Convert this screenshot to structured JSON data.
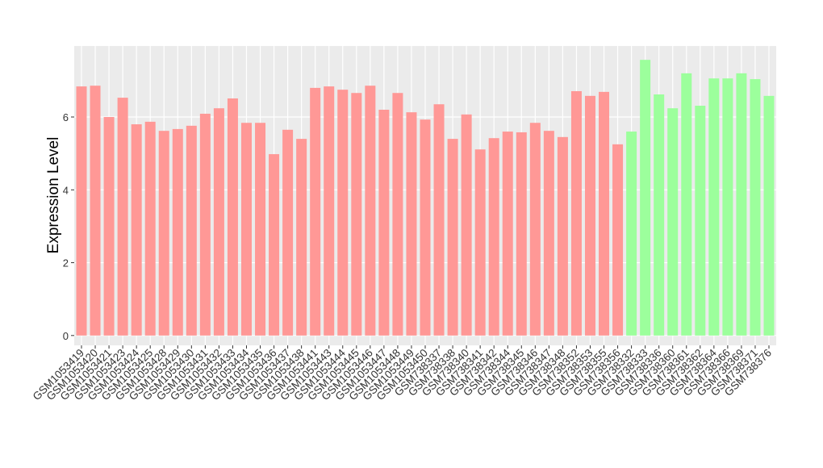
{
  "chart_data": {
    "type": "bar",
    "y_label": "Expression Level",
    "categories": [
      "GSM1053419",
      "GSM1053420",
      "GSM1053421",
      "GSM1053423",
      "GSM1053424",
      "GSM1053425",
      "GSM1053428",
      "GSM1053429",
      "GSM1053430",
      "GSM1053431",
      "GSM1053432",
      "GSM1053433",
      "GSM1053434",
      "GSM1053435",
      "GSM1053436",
      "GSM1053437",
      "GSM1053438",
      "GSM1053441",
      "GSM1053443",
      "GSM1053444",
      "GSM1053445",
      "GSM1053446",
      "GSM1053447",
      "GSM1053448",
      "GSM1053449",
      "GSM1053450",
      "GSM738337",
      "GSM738338",
      "GSM738340",
      "GSM738341",
      "GSM738342",
      "GSM738344",
      "GSM738345",
      "GSM738346",
      "GSM738347",
      "GSM738348",
      "GSM738352",
      "GSM738353",
      "GSM738355",
      "GSM738356",
      "GSM738332",
      "GSM738333",
      "GSM738336",
      "GSM738360",
      "GSM738361",
      "GSM738362",
      "GSM738364",
      "GSM738366",
      "GSM738369",
      "GSM738371",
      "GSM738376"
    ],
    "values": [
      6.84,
      6.86,
      6.0,
      6.53,
      5.8,
      5.87,
      5.62,
      5.67,
      5.76,
      6.09,
      6.24,
      6.51,
      5.84,
      5.84,
      4.98,
      5.65,
      5.4,
      6.8,
      6.84,
      6.75,
      6.66,
      6.86,
      6.2,
      6.66,
      6.13,
      5.93,
      6.35,
      5.4,
      6.07,
      5.11,
      5.42,
      5.6,
      5.58,
      5.84,
      5.62,
      5.45,
      6.71,
      6.58,
      6.69,
      5.25,
      5.6,
      7.57,
      6.62,
      6.24,
      7.2,
      6.31,
      7.06,
      7.06,
      7.2,
      7.04,
      6.58
    ],
    "colors": [
      "#ff9896",
      "#ff9896",
      "#ff9896",
      "#ff9896",
      "#ff9896",
      "#ff9896",
      "#ff9896",
      "#ff9896",
      "#ff9896",
      "#ff9896",
      "#ff9896",
      "#ff9896",
      "#ff9896",
      "#ff9896",
      "#ff9896",
      "#ff9896",
      "#ff9896",
      "#ff9896",
      "#ff9896",
      "#ff9896",
      "#ff9896",
      "#ff9896",
      "#ff9896",
      "#ff9896",
      "#ff9896",
      "#ff9896",
      "#ff9896",
      "#ff9896",
      "#ff9896",
      "#ff9896",
      "#ff9896",
      "#ff9896",
      "#ff9896",
      "#ff9896",
      "#ff9896",
      "#ff9896",
      "#ff9896",
      "#ff9896",
      "#ff9896",
      "#ff9896",
      "#9cff9c",
      "#9cff9c",
      "#9cff9c",
      "#9cff9c",
      "#9cff9c",
      "#9cff9c",
      "#9cff9c",
      "#9cff9c",
      "#9cff9c",
      "#9cff9c",
      "#9cff9c"
    ],
    "ylim": [
      -0.27,
      7.95
    ],
    "yticks": [
      0,
      2,
      4,
      6
    ],
    "grid": true
  }
}
